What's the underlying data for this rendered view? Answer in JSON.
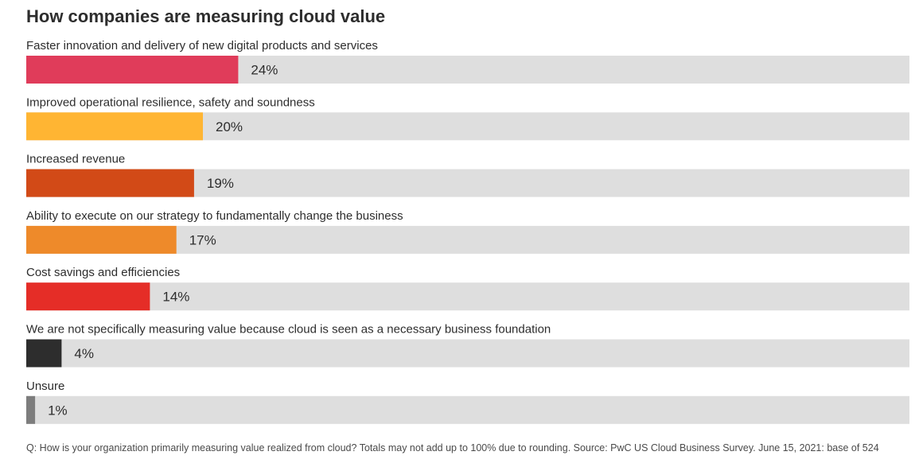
{
  "chart_data": {
    "type": "bar",
    "orientation": "horizontal",
    "title": "How companies are measuring cloud value",
    "categories": [
      "Faster innovation and delivery of new digital products and services",
      "Improved operational resilience, safety and soundness",
      "Increased revenue",
      "Ability to execute on our strategy to fundamentally change the business",
      "Cost savings and efficiencies",
      "We are not specifically measuring value because cloud is seen as a necessary business foundation",
      "Unsure"
    ],
    "values": [
      24,
      20,
      19,
      17,
      14,
      4,
      1
    ],
    "value_labels": [
      "24%",
      "20%",
      "19%",
      "17%",
      "14%",
      "4%",
      "1%"
    ],
    "colors": [
      "#e03c5a",
      "#ffb533",
      "#d24a17",
      "#ee8a2a",
      "#e52d27",
      "#2d2d2d",
      "#7d7d7d"
    ],
    "track_color": "#dedede",
    "xlim": [
      0,
      100
    ],
    "grid": false,
    "legend": "none"
  },
  "footnote": "Q: How is your organization primarily measuring value realized from cloud? Totals may not add up to 100% due to rounding. Source: PwC US Cloud Business Survey. June 15, 2021: base of 524"
}
